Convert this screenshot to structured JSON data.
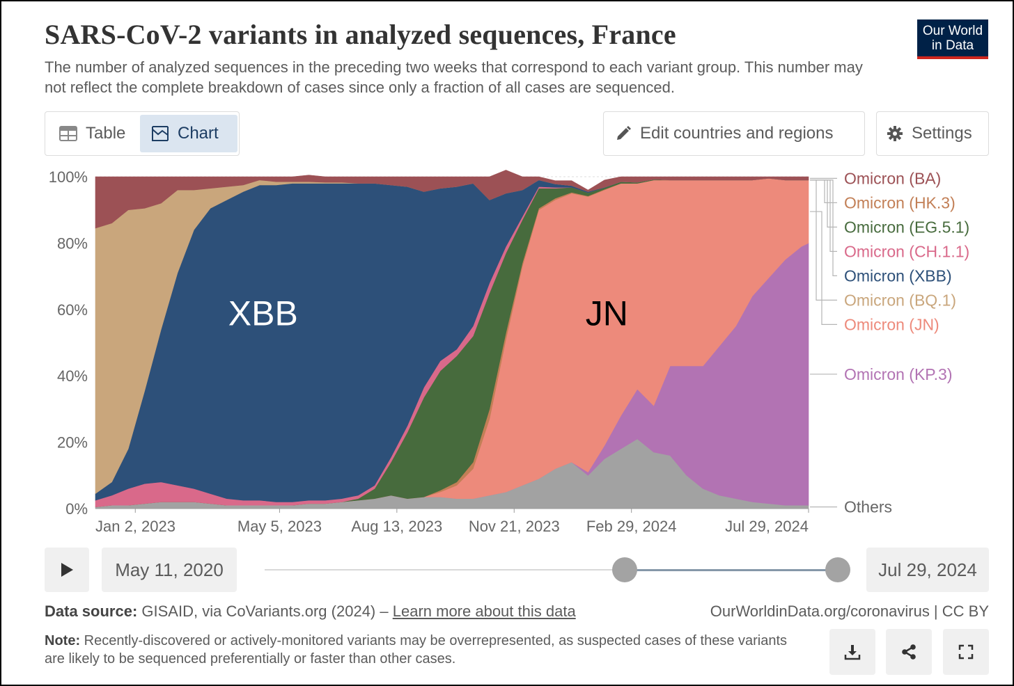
{
  "header": {
    "title": "SARS-CoV-2 variants in analyzed sequences, France",
    "subtitle": "The number of analyzed sequences in the preceding two weeks that correspond to each variant group. This number may not reflect the complete breakdown of cases since only a fraction of all cases are sequenced.",
    "logo_line1": "Our World",
    "logo_line2": "in Data"
  },
  "toolbar": {
    "table_label": "Table",
    "chart_label": "Chart",
    "edit_label": "Edit countries and regions",
    "settings_label": "Settings"
  },
  "timeline": {
    "start_date": "May 11, 2020",
    "end_date": "Jul 29, 2024"
  },
  "footer": {
    "source_label": "Data source:",
    "source_text": "GISAID, via CoVariants.org (2024) –",
    "source_link": "Learn more about this data",
    "license": "OurWorldinData.org/coronavirus | CC BY",
    "note_label": "Note:",
    "note_text": "Recently-discovered or actively-monitored variants may be overrepresented, as suspected cases of these variants are likely to be sequenced preferentially or faster than other cases."
  },
  "icons": {
    "table": "table-icon",
    "chart": "chart-icon",
    "edit": "pencil-icon",
    "settings": "gear-icon",
    "play": "play-icon",
    "download": "download-icon",
    "share": "share-icon",
    "fullscreen": "fullscreen-icon"
  },
  "chart_data": {
    "type": "area",
    "stacked": true,
    "percent": true,
    "xlabel": "",
    "ylabel": "",
    "ylim": [
      0,
      100
    ],
    "y_ticks": [
      "0%",
      "20%",
      "40%",
      "60%",
      "80%",
      "100%"
    ],
    "x_ticks": [
      "Jan 2, 2023",
      "May 5, 2023",
      "Aug 13, 2023",
      "Nov 21, 2023",
      "Feb 29, 2024",
      "Jul 29, 2024"
    ],
    "x_tick_dates": [
      "2023-01-02",
      "2023-05-05",
      "2023-08-13",
      "2023-11-21",
      "2024-02-29",
      "2024-07-29"
    ],
    "x_range": [
      "2022-11-29",
      "2024-07-29"
    ],
    "legend_position": "right",
    "annotations": [
      {
        "text": "XBB",
        "date": "2023-04-21",
        "y": 59
      },
      {
        "text": "JN",
        "date": "2024-02-08",
        "y": 59
      }
    ],
    "x": [
      "2022-11-29",
      "2022-12-13",
      "2022-12-27",
      "2023-01-10",
      "2023-01-24",
      "2023-02-07",
      "2023-02-21",
      "2023-03-07",
      "2023-03-21",
      "2023-04-04",
      "2023-04-18",
      "2023-05-02",
      "2023-05-16",
      "2023-05-30",
      "2023-06-13",
      "2023-06-27",
      "2023-07-11",
      "2023-07-25",
      "2023-08-08",
      "2023-08-22",
      "2023-09-05",
      "2023-09-19",
      "2023-10-03",
      "2023-10-17",
      "2023-10-31",
      "2023-11-14",
      "2023-11-28",
      "2023-12-12",
      "2023-12-26",
      "2024-01-09",
      "2024-01-23",
      "2024-02-06",
      "2024-02-20",
      "2024-03-05",
      "2024-03-19",
      "2024-04-02",
      "2024-04-16",
      "2024-04-30",
      "2024-05-14",
      "2024-05-28",
      "2024-06-11",
      "2024-06-25",
      "2024-07-09",
      "2024-07-23",
      "2024-07-29"
    ],
    "series": [
      {
        "name": "Others",
        "color": "#a2a2a2",
        "values": [
          0.5,
          1,
          1,
          1.5,
          2,
          2,
          2,
          1.5,
          1,
          1,
          1,
          1,
          1,
          1.5,
          1.5,
          2,
          2.5,
          3,
          4,
          3,
          3.5,
          3.5,
          3,
          3,
          4,
          5,
          7,
          9,
          12,
          14,
          10,
          15,
          18,
          21,
          17,
          16,
          10,
          6,
          4,
          3,
          2,
          1.5,
          1,
          1,
          1
        ]
      },
      {
        "name": "Omicron (KP.3)",
        "color": "#b273b3",
        "values": [
          0,
          0,
          0,
          0,
          0,
          0,
          0,
          0,
          0,
          0,
          0,
          0,
          0,
          0,
          0,
          0,
          0,
          0,
          0,
          0,
          0,
          0,
          0,
          0,
          0,
          0,
          0,
          0,
          0,
          0,
          1,
          4,
          10,
          15,
          14,
          27,
          33,
          37,
          45,
          52,
          62,
          68,
          74,
          78,
          79
        ]
      },
      {
        "name": "Omicron (JN)",
        "color": "#ed8a7b",
        "values": [
          0,
          0,
          0,
          0,
          0,
          0,
          0,
          0,
          0,
          0,
          0,
          0,
          0,
          0,
          0,
          0,
          0,
          0,
          0,
          0,
          0,
          1.5,
          4,
          9,
          23,
          46,
          66,
          81,
          81,
          81,
          83,
          77,
          70,
          62,
          68,
          56,
          56,
          56,
          50,
          44,
          35,
          30,
          24,
          20,
          19
        ]
      },
      {
        "name": "Omicron (HK.3)",
        "color": "#c27f56",
        "values": [
          0,
          0,
          0,
          0,
          0,
          0,
          0,
          0,
          0,
          0,
          0,
          0,
          0,
          0,
          0,
          0,
          0,
          0,
          0,
          0,
          0,
          0.5,
          1,
          2,
          3,
          2,
          1,
          0.5,
          0.5,
          0.3,
          0.2,
          0.2,
          0,
          0,
          0,
          0,
          0,
          0,
          0,
          0,
          0,
          0,
          0,
          0,
          0
        ]
      },
      {
        "name": "Omicron (EG.5.1)",
        "color": "#476b3d",
        "values": [
          0,
          0,
          0,
          0,
          0,
          0,
          0,
          0,
          0,
          0,
          0,
          0,
          0,
          0,
          0,
          0,
          0.5,
          3,
          10,
          20,
          30,
          36,
          38,
          38,
          35,
          24,
          13,
          6,
          3,
          1.5,
          1,
          0.5,
          0.5,
          0.3,
          0.2,
          0,
          0,
          0,
          0,
          0,
          0,
          0,
          0,
          0,
          0
        ]
      },
      {
        "name": "Omicron (CH.1.1)",
        "color": "#d9698a",
        "values": [
          2,
          3,
          5,
          6,
          6,
          5,
          4,
          3,
          2,
          1.5,
          1.5,
          1,
          1,
          1,
          1,
          1,
          1,
          1,
          1.5,
          2,
          3,
          3,
          2,
          3,
          3,
          2,
          1,
          0.5,
          0.3,
          0,
          0,
          0,
          0,
          0,
          0,
          0,
          0,
          0,
          0,
          0,
          0,
          0,
          0,
          0,
          0
        ]
      },
      {
        "name": "Omicron (XBB)",
        "color": "#2d5079",
        "values": [
          2,
          4,
          12,
          28,
          46,
          64,
          78,
          86,
          90,
          93,
          95,
          95.5,
          96,
          95.5,
          95.5,
          95,
          94,
          91,
          82,
          72,
          59,
          52,
          49,
          43,
          25,
          16,
          8,
          2,
          1,
          0.5,
          0.3,
          0.1,
          0,
          0,
          0,
          0,
          0,
          0,
          0,
          0,
          0,
          0,
          0,
          0,
          0
        ]
      },
      {
        "name": "Omicron (BQ.1)",
        "color": "#c9a67c",
        "values": [
          80,
          78,
          72,
          55,
          38,
          25,
          12,
          6,
          4,
          2,
          1.5,
          1,
          0.5,
          0.5,
          0.3,
          0.3,
          0,
          0,
          0,
          0,
          0,
          0,
          0,
          0,
          0,
          0,
          0,
          0,
          0,
          0,
          0,
          0,
          0,
          0,
          0,
          0,
          0,
          0,
          0,
          0,
          0,
          0,
          0,
          0,
          0
        ]
      },
      {
        "name": "Omicron (BA)",
        "color": "#9c5155",
        "values": [
          15.5,
          14,
          10,
          9.5,
          8,
          4,
          4,
          3.5,
          3,
          2.5,
          1,
          1.5,
          1.5,
          2,
          1.7,
          1.7,
          2,
          2,
          2.5,
          3,
          4.5,
          3.5,
          3,
          2,
          7,
          7,
          4,
          1,
          1,
          1.5,
          0.5,
          2.2,
          1.5,
          1.7,
          0.8,
          1,
          1,
          1,
          1,
          1,
          1,
          0.5,
          1,
          1,
          1
        ]
      }
    ]
  }
}
